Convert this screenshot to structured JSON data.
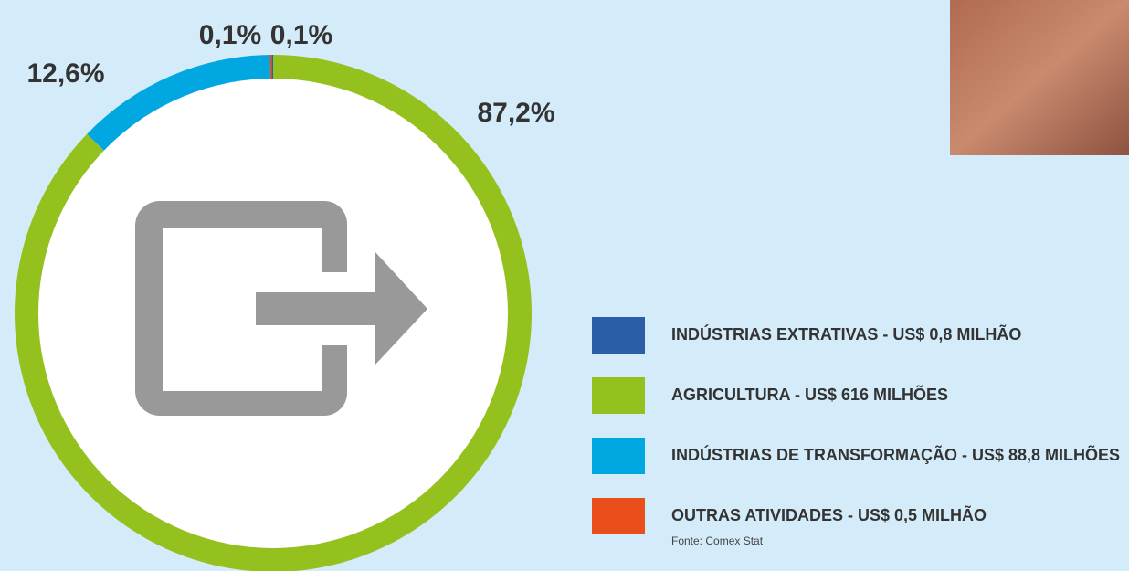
{
  "chart_data": {
    "type": "pie",
    "donut": true,
    "categories": [
      "INDÚSTRIAS EXTRATIVAS - US$ 0,8 MILHÃO",
      "AGRICULTURA - US$ 616 MILHÕES",
      "INDÚSTRIAS DE TRANSFORMAÇÃO - US$ 88,8 MILHÕES",
      "OUTRAS ATIVIDADES - US$ 0,5 MILHÃO"
    ],
    "values": [
      0.1,
      87.2,
      12.6,
      0.1
    ],
    "value_labels": [
      "0,1%",
      "87,2%",
      "12,6%",
      "0,1%"
    ],
    "colors": [
      "#2b5ea6",
      "#95c11f",
      "#00a7e1",
      "#e94e1b"
    ],
    "source": "Fonte: Comex Stat"
  }
}
